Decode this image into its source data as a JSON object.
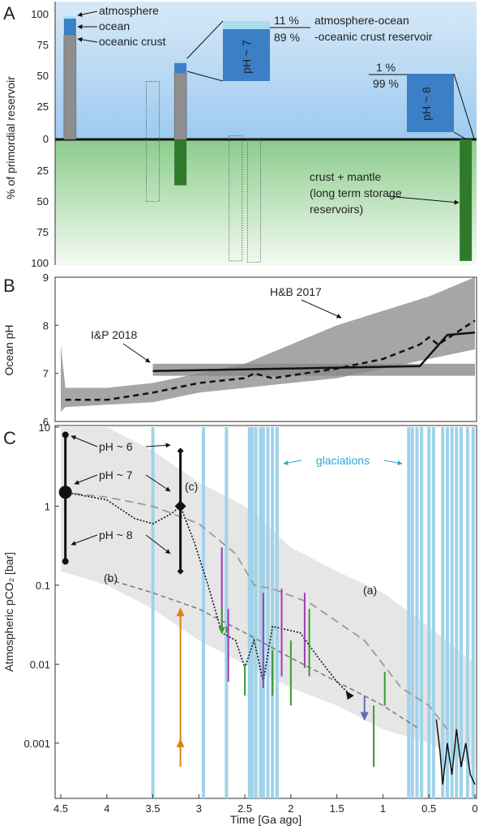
{
  "chart_data": [
    {
      "panel": "A",
      "type": "bar",
      "ylabel": "% of primordial reservoir",
      "ylim_top": [
        0,
        100
      ],
      "ylim_bottom": [
        0,
        100
      ],
      "yticks_top": [
        "100",
        "75",
        "50",
        "25",
        "0"
      ],
      "yticks_bottom": [
        "25",
        "50",
        "75",
        "100"
      ],
      "reservoir_label_top": [
        "atmosphere-ocean",
        "-oceanic crust reservoir"
      ],
      "reservoir_label_bottom": [
        "crust + mantle",
        "(long term storage",
        "reservoirs)"
      ],
      "bars": [
        {
          "x": 4.4,
          "oceanic_crust": 85,
          "ocean": 13,
          "atmosphere": 2,
          "storage": 0
        },
        {
          "x": 3.2,
          "oceanic_crust": 54,
          "ocean": 8,
          "atmosphere": 1,
          "storage": 37
        },
        {
          "x": 0.1,
          "oceanic_crust": 0,
          "ocean": 0,
          "atmosphere": 0,
          "storage": 98
        }
      ],
      "dotted_boxes": [
        {
          "x": 3.5,
          "top": 47,
          "bottom": 50
        },
        {
          "x": 2.6,
          "top": 3,
          "bottom": 98
        },
        {
          "x": 2.4,
          "top": 0,
          "bottom": 99
        }
      ],
      "legend": [
        "atmosphere",
        "ocean",
        "oceanic crust"
      ],
      "insets": [
        {
          "ph": "pH ~ 7",
          "top_pct": "11 %",
          "bottom_pct": "89 %"
        },
        {
          "ph": "pH ~ 8",
          "top_pct": "1 %",
          "bottom_pct": "99 %"
        }
      ]
    },
    {
      "panel": "B",
      "type": "line",
      "ylabel": "Ocean pH",
      "ylim": [
        6,
        9
      ],
      "yticks": [
        "6",
        "7",
        "8",
        "9"
      ],
      "band_labels": [
        "H&B 2017",
        "I&P 2018"
      ],
      "hb2017_band": [
        {
          "x": 4.5,
          "lo": 6.2,
          "hi": 7.6
        },
        {
          "x": 4.45,
          "lo": 6.3,
          "hi": 6.7
        },
        {
          "x": 4.0,
          "lo": 6.35,
          "hi": 6.7
        },
        {
          "x": 3.5,
          "lo": 6.4,
          "hi": 6.8
        },
        {
          "x": 3.0,
          "lo": 6.6,
          "hi": 7.0
        },
        {
          "x": 2.5,
          "lo": 6.7,
          "hi": 7.2
        },
        {
          "x": 2.0,
          "lo": 6.8,
          "hi": 7.6
        },
        {
          "x": 1.5,
          "lo": 6.9,
          "hi": 8.0
        },
        {
          "x": 1.0,
          "lo": 7.1,
          "hi": 8.3
        },
        {
          "x": 0.5,
          "lo": 7.3,
          "hi": 8.6
        },
        {
          "x": 0.0,
          "lo": 7.5,
          "hi": 9.0
        }
      ],
      "hb2017_median": [
        {
          "x": 4.45,
          "y": 6.45
        },
        {
          "x": 4.0,
          "y": 6.45
        },
        {
          "x": 3.5,
          "y": 6.6
        },
        {
          "x": 3.0,
          "y": 6.8
        },
        {
          "x": 2.5,
          "y": 6.9
        },
        {
          "x": 2.4,
          "y": 7.0
        },
        {
          "x": 2.2,
          "y": 6.9
        },
        {
          "x": 1.5,
          "y": 7.1
        },
        {
          "x": 1.0,
          "y": 7.3
        },
        {
          "x": 0.6,
          "y": 7.6
        },
        {
          "x": 0.5,
          "y": 7.75
        },
        {
          "x": 0.4,
          "y": 7.6
        },
        {
          "x": 0.0,
          "y": 8.1
        }
      ],
      "ip2018_band": {
        "x_start": 3.5,
        "x_end": 0.0,
        "lo": 6.95,
        "hi": 7.2
      },
      "ip2018_line": [
        {
          "x": 3.5,
          "y": 7.05
        },
        {
          "x": 0.6,
          "y": 7.15
        },
        {
          "x": 0.3,
          "y": 7.8
        },
        {
          "x": 0.0,
          "y": 7.85
        }
      ]
    },
    {
      "panel": "C",
      "type": "line",
      "ylabel": "Atmospheric pCO₂ [bar]",
      "xlabel": "Time [Ga ago]",
      "yscale": "log",
      "ylim": [
        0.0002,
        10
      ],
      "xlim": [
        4.5,
        0
      ],
      "yticks": [
        "10",
        "1",
        "0.1",
        "0.01",
        "0.001"
      ],
      "xticks": [
        "4.5",
        "4",
        "3.5",
        "3",
        "2.5",
        "2",
        "1.5",
        "1",
        "0.5",
        "0"
      ],
      "glaciation_label": "glaciations",
      "glaciations": [
        3.5,
        2.95,
        2.7,
        2.45,
        2.42,
        2.38,
        2.33,
        2.3,
        2.25,
        2.2,
        2.15,
        0.72,
        0.68,
        0.63,
        0.58,
        0.5,
        0.45,
        0.35,
        0.3,
        0.25,
        0.2,
        0.15,
        0.08,
        0.02
      ],
      "ph_labels": [
        "pH ~ 6",
        "pH ~ 7",
        "pH ~ 8"
      ],
      "curve_labels": [
        "(a)",
        "(b)",
        "(c)"
      ],
      "error_bars_45": {
        "x": 4.45,
        "top": 8,
        "mid": 1.5,
        "bottom": 0.2
      },
      "error_bars_32": {
        "x": 3.2,
        "top": 5,
        "mid": 1,
        "bottom": 0.15
      },
      "band": [
        {
          "x": 4.5,
          "lo": 0.15,
          "hi": 10
        },
        {
          "x": 4.0,
          "lo": 0.1,
          "hi": 10
        },
        {
          "x": 3.5,
          "lo": 0.05,
          "hi": 5
        },
        {
          "x": 3.0,
          "lo": 0.02,
          "hi": 2
        },
        {
          "x": 2.5,
          "lo": 0.01,
          "hi": 1
        },
        {
          "x": 2.0,
          "lo": 0.005,
          "hi": 0.3
        },
        {
          "x": 1.5,
          "lo": 0.003,
          "hi": 0.15
        },
        {
          "x": 1.0,
          "lo": 0.0015,
          "hi": 0.08
        },
        {
          "x": 0.5,
          "lo": 0.001,
          "hi": 0.03
        },
        {
          "x": 0.0,
          "lo": 0.0005,
          "hi": 0.01
        }
      ],
      "curve_a": [
        {
          "x": 4.5,
          "y": 1.5
        },
        {
          "x": 4.0,
          "y": 1.3
        },
        {
          "x": 3.5,
          "y": 1.0
        },
        {
          "x": 3.0,
          "y": 0.6
        },
        {
          "x": 2.6,
          "y": 0.25
        },
        {
          "x": 2.4,
          "y": 0.1
        },
        {
          "x": 2.2,
          "y": 0.09
        },
        {
          "x": 1.8,
          "y": 0.06
        },
        {
          "x": 1.2,
          "y": 0.02
        },
        {
          "x": 0.8,
          "y": 0.005
        },
        {
          "x": 0.5,
          "y": 0.003
        },
        {
          "x": 0.3,
          "y": 0.0015
        }
      ],
      "curve_b": [
        {
          "x": 4.0,
          "y": 0.12
        },
        {
          "x": 3.5,
          "y": 0.08
        },
        {
          "x": 3.0,
          "y": 0.05
        },
        {
          "x": 2.5,
          "y": 0.025
        },
        {
          "x": 2.0,
          "y": 0.012
        },
        {
          "x": 1.5,
          "y": 0.006
        },
        {
          "x": 1.0,
          "y": 0.003
        },
        {
          "x": 0.6,
          "y": 0.0015
        }
      ],
      "curve_c": [
        {
          "x": 4.45,
          "y": 1.5
        },
        {
          "x": 4.0,
          "y": 1.2
        },
        {
          "x": 3.7,
          "y": 0.7
        },
        {
          "x": 3.5,
          "y": 0.6
        },
        {
          "x": 3.3,
          "y": 0.8
        },
        {
          "x": 3.2,
          "y": 1.0
        },
        {
          "x": 3.05,
          "y": 0.35
        },
        {
          "x": 2.9,
          "y": 0.1
        },
        {
          "x": 2.75,
          "y": 0.025
        },
        {
          "x": 2.6,
          "y": 0.02
        },
        {
          "x": 2.5,
          "y": 0.009
        },
        {
          "x": 2.4,
          "y": 0.02
        },
        {
          "x": 2.3,
          "y": 0.006
        },
        {
          "x": 2.2,
          "y": 0.03
        },
        {
          "x": 1.9,
          "y": 0.025
        },
        {
          "x": 1.7,
          "y": 0.012
        },
        {
          "x": 1.5,
          "y": 0.006
        },
        {
          "x": 1.35,
          "y": 0.004
        }
      ],
      "phanerozoic": [
        {
          "x": 0.42,
          "y": 0.002
        },
        {
          "x": 0.38,
          "y": 0.0008
        },
        {
          "x": 0.35,
          "y": 0.0003
        },
        {
          "x": 0.3,
          "y": 0.001
        },
        {
          "x": 0.25,
          "y": 0.0004
        },
        {
          "x": 0.2,
          "y": 0.0015
        },
        {
          "x": 0.15,
          "y": 0.0005
        },
        {
          "x": 0.1,
          "y": 0.001
        },
        {
          "x": 0.05,
          "y": 0.0004
        },
        {
          "x": 0.0,
          "y": 0.0003
        }
      ],
      "proxies_purple": [
        {
          "x": 2.75,
          "lo": 0.025,
          "hi": 0.3
        },
        {
          "x": 2.68,
          "lo": 0.006,
          "hi": 0.05
        },
        {
          "x": 2.3,
          "lo": 0.005,
          "hi": 0.08
        },
        {
          "x": 2.1,
          "lo": 0.007,
          "hi": 0.09
        },
        {
          "x": 1.85,
          "lo": 0.009,
          "hi": 0.08
        }
      ],
      "proxies_green": [
        {
          "x": 2.7,
          "lo": 0.025,
          "hi": 0.03
        },
        {
          "x": 2.5,
          "lo": 0.004,
          "hi": 0.01
        },
        {
          "x": 2.2,
          "lo": 0.004,
          "hi": 0.015
        },
        {
          "x": 2.0,
          "lo": 0.003,
          "hi": 0.02
        },
        {
          "x": 1.8,
          "lo": 0.007,
          "hi": 0.05
        },
        {
          "x": 1.1,
          "lo": 0.0005,
          "hi": 0.003
        },
        {
          "x": 0.98,
          "lo": 0.003,
          "hi": 0.008
        }
      ],
      "orange_arrow": {
        "x": 3.2,
        "from": 0.0005,
        "to": 0.05
      },
      "blue_arrow": {
        "x": 1.2,
        "from": 0.004,
        "to": 0.002
      },
      "green_arrow": {
        "x": 2.75,
        "from": 0.05,
        "to": 0.025
      }
    }
  ]
}
